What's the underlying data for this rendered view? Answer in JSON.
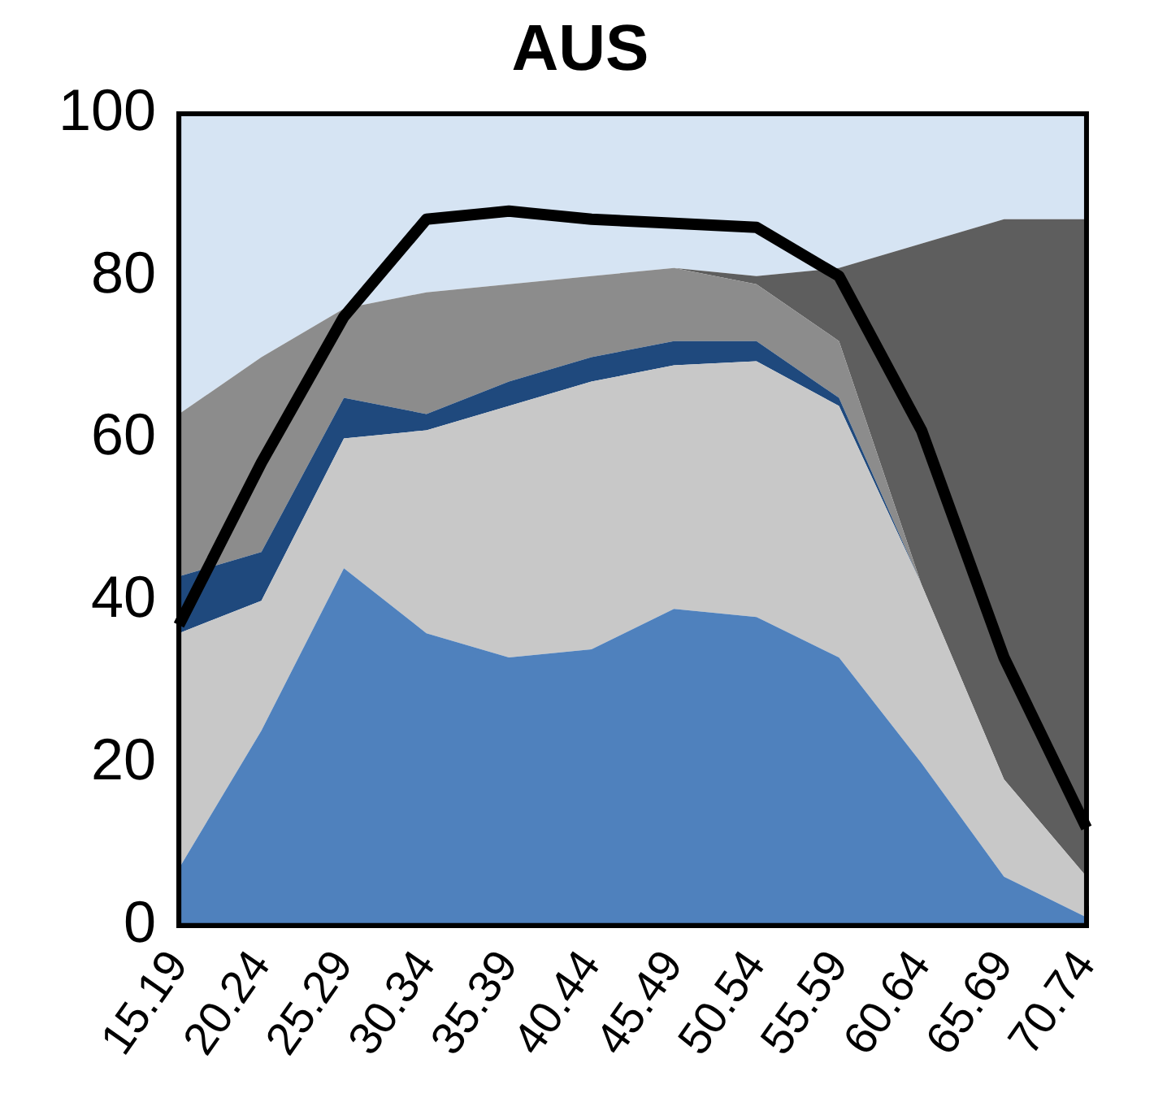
{
  "chart_data": {
    "type": "area",
    "title": "AUS",
    "stacked": true,
    "categories": [
      "15.19",
      "20.24",
      "25.29",
      "30.34",
      "35.39",
      "40.44",
      "45.49",
      "50.54",
      "55.59",
      "60.64",
      "65.69",
      "70.74"
    ],
    "ylim": [
      0,
      100
    ],
    "yticks": [
      0,
      20,
      40,
      60,
      80,
      100
    ],
    "grid": false,
    "legend": false,
    "series": [
      {
        "color": "#4f81bd",
        "values": [
          7,
          24,
          44,
          36,
          33,
          34,
          39,
          38,
          33,
          20,
          6,
          1
        ]
      },
      {
        "color": "#c8c8c8",
        "values": [
          29,
          16,
          16,
          25,
          31,
          33,
          30,
          31.5,
          31,
          22,
          12,
          5
        ]
      },
      {
        "color": "#1f497d",
        "values": [
          7,
          6,
          5,
          2,
          3,
          3,
          3,
          2.5,
          1,
          0,
          0,
          0
        ]
      },
      {
        "color": "#8c8c8c",
        "values": [
          20,
          24,
          11,
          15,
          12,
          10,
          9,
          7,
          7,
          0,
          0,
          0
        ]
      },
      {
        "color": "#5e5e5e",
        "values": [
          0,
          0,
          0,
          0,
          0,
          0,
          0,
          1,
          9,
          42,
          69,
          81
        ]
      },
      {
        "color": "#d6e4f3",
        "values": [
          37,
          30,
          24,
          22,
          21,
          20,
          19,
          20,
          19,
          16,
          13,
          13
        ]
      },
      {
        "type": "line",
        "color": "#000000",
        "values": [
          37,
          57,
          75,
          87,
          88,
          87,
          86.5,
          86,
          80,
          61,
          33,
          12
        ]
      }
    ]
  }
}
